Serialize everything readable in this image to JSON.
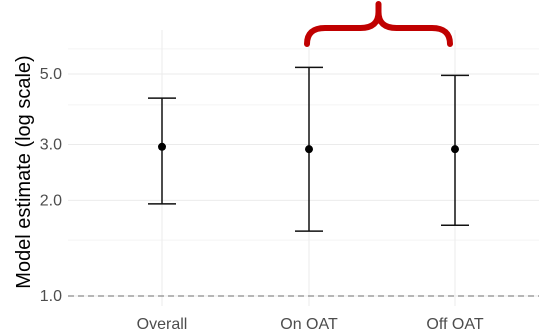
{
  "chart_data": {
    "type": "errorbar",
    "ylabel": "Model estimate (log scale)",
    "xlabel": "",
    "y_scale": "log",
    "ylim": [
      0.93,
      6.4
    ],
    "y_ticks": [
      1.0,
      2.0,
      3.0,
      5.0
    ],
    "y_tick_labels": [
      "1.0",
      "2.0",
      "3.0",
      "5.0"
    ],
    "y_minor_ticks": [
      1.5,
      4.0,
      6.0
    ],
    "reference_line": {
      "y": 1.0,
      "style": "dashed"
    },
    "categories": [
      "Overall",
      "On OAT",
      "Off OAT"
    ],
    "estimates": [
      2.95,
      2.9,
      2.9
    ],
    "lower": [
      1.95,
      1.6,
      1.67
    ],
    "upper": [
      4.2,
      5.25,
      4.95
    ],
    "annotation": {
      "type": "brace",
      "color": "#c00000",
      "spans": [
        "On OAT",
        "Off OAT"
      ]
    },
    "grid": true,
    "legend": "none"
  }
}
